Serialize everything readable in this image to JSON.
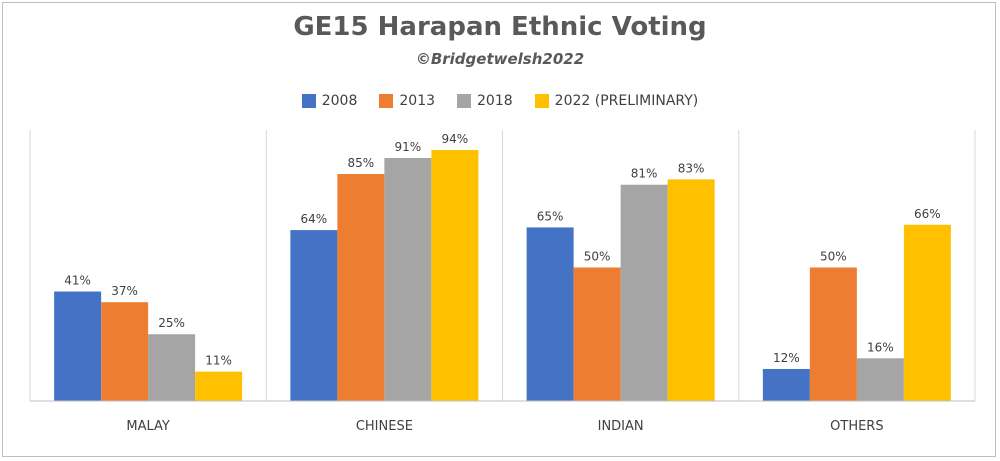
{
  "chart_data": {
    "type": "bar",
    "title": "GE15 Harapan Ethnic Voting",
    "subtitle": "©Bridgetwelsh2022",
    "categories": [
      "MALAY",
      "CHINESE",
      "INDIAN",
      "OTHERS"
    ],
    "series": [
      {
        "name": "2008",
        "color": "#4472C4",
        "values": [
          41,
          64,
          65,
          12
        ]
      },
      {
        "name": "2013",
        "color": "#ED7D31",
        "values": [
          37,
          85,
          50,
          50
        ]
      },
      {
        "name": "2018",
        "color": "#A5A5A5",
        "values": [
          25,
          91,
          81,
          16
        ]
      },
      {
        "name": "2022 (PRELIMINARY)",
        "color": "#FFC000",
        "values": [
          11,
          94,
          83,
          66
        ]
      }
    ],
    "value_suffix": "%",
    "ylim": [
      0,
      100
    ],
    "legend_position": "top",
    "grid": false,
    "category_separators": true
  }
}
